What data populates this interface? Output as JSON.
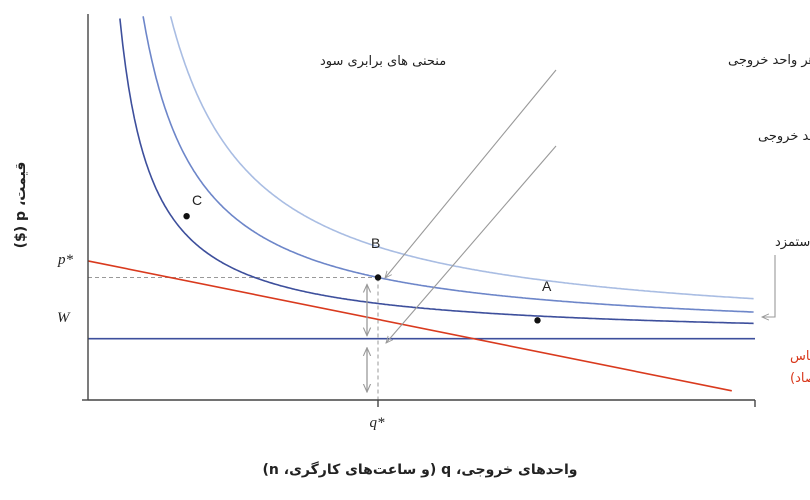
{
  "chart_data": {
    "type": "line",
    "x_axis": {
      "label": "واحدهای خروجی، q (و ساعت‌های کارگری، n)",
      "ticks": [
        {
          "label": "q*",
          "value": 10
        }
      ],
      "range": [
        0,
        23
      ]
    },
    "y_axis": {
      "label": "قیمت، p ($)",
      "ticks": [
        {
          "label": "p*",
          "value": 2
        },
        {
          "label": "W",
          "value": 1
        }
      ],
      "range": [
        0,
        6.3
      ]
    },
    "curves": {
      "isoprofit_title": "منحنی های برابری سود",
      "isoprofit": [
        {
          "name": "isoprofit-high",
          "profit_k": 15,
          "color": "#a9bde3"
        },
        {
          "name": "isoprofit-mid",
          "profit_k": 10,
          "color": "#6d86c9"
        },
        {
          "name": "isoprofit-low",
          "profit_k": 5.75,
          "color": "#3d4f9c"
        }
      ],
      "wage_line": {
        "name": "W",
        "y": 1,
        "color": "#3d4f9c"
      },
      "demand": {
        "label_line1": "منحنی تقاضا (بر اساس",
        "label_line2": "تقاضا در کل اقتصاد)",
        "points": [
          [
            0,
            2.27
          ],
          [
            22.2,
            0.15
          ]
        ],
        "color": "#d93a1e"
      }
    },
    "points": [
      {
        "label": "A",
        "x": 15.5,
        "y": 1.3
      },
      {
        "label": "B",
        "x": 10,
        "y": 2
      },
      {
        "label": "C",
        "x": 3.4,
        "y": 3
      }
    ],
    "annotations": {
      "profit_per_unit": "سود در هر واحد خروجی",
      "wage_per_unit": "دستمزد به ازای هر واحد خروجی",
      "wage": "دستمزد"
    }
  }
}
